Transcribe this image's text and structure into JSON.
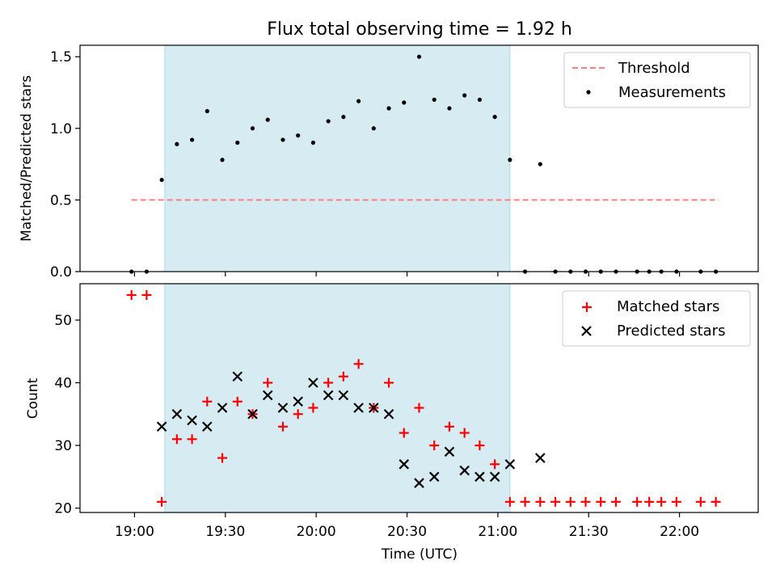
{
  "title": "Flux total observing time = 1.92 h",
  "xlabel": "Time (UTC)",
  "x_ticks": [
    "19:00",
    "19:30",
    "20:00",
    "20:30",
    "21:00",
    "21:30",
    "22:00"
  ],
  "colors": {
    "shade": "#add8e6",
    "threshold": "#ff7f7f",
    "measurement": "#000000",
    "matched": "#ff0000",
    "predicted": "#000000"
  },
  "chart_data": [
    {
      "type": "scatter",
      "panel": "top",
      "ylabel": "Matched/Predicted stars",
      "ylim": [
        0,
        1.58
      ],
      "y_ticks": [
        "0.0",
        "0.5",
        "1.0",
        "1.5"
      ],
      "legend_position": "top-right",
      "shaded_interval": [
        "19:10",
        "21:04"
      ],
      "threshold": {
        "name": "Threshold",
        "value": 0.5,
        "x_range": [
          "18:59",
          "22:13"
        ]
      },
      "series": [
        {
          "name": "Measurements",
          "x": [
            "18:59",
            "19:04",
            "19:09",
            "19:14",
            "19:19",
            "19:24",
            "19:29",
            "19:34",
            "19:39",
            "19:44",
            "19:49",
            "19:54",
            "19:59",
            "20:04",
            "20:09",
            "20:14",
            "20:19",
            "20:24",
            "20:29",
            "20:34",
            "20:39",
            "20:44",
            "20:49",
            "20:54",
            "20:59",
            "21:04",
            "21:09",
            "21:14",
            "21:19",
            "21:24",
            "21:29",
            "21:34",
            "21:39",
            "21:46",
            "21:50",
            "21:54",
            "21:59",
            "22:07",
            "22:12"
          ],
          "y": [
            0,
            0,
            0.64,
            0.89,
            0.92,
            1.12,
            0.78,
            0.9,
            1.0,
            1.06,
            0.92,
            0.95,
            0.9,
            1.05,
            1.08,
            1.19,
            1.0,
            1.14,
            1.18,
            1.5,
            1.2,
            1.14,
            1.23,
            1.2,
            1.08,
            0.78,
            0,
            0.75,
            0,
            0,
            0,
            0,
            0,
            0,
            0,
            0,
            0,
            0,
            0
          ]
        }
      ]
    },
    {
      "type": "scatter",
      "panel": "bottom",
      "ylabel": "Count",
      "ylim": [
        19.3,
        55.8
      ],
      "y_ticks": [
        "20",
        "30",
        "40",
        "50"
      ],
      "legend_position": "top-right",
      "shaded_interval": [
        "19:10",
        "21:04"
      ],
      "series": [
        {
          "name": "Matched stars",
          "marker": "plus",
          "x": [
            "18:59",
            "19:04",
            "19:09",
            "19:14",
            "19:19",
            "19:24",
            "19:29",
            "19:34",
            "19:39",
            "19:44",
            "19:49",
            "19:54",
            "19:59",
            "20:04",
            "20:09",
            "20:14",
            "20:19",
            "20:24",
            "20:29",
            "20:34",
            "20:39",
            "20:44",
            "20:49",
            "20:54",
            "20:59",
            "21:04",
            "21:09",
            "21:14",
            "21:19",
            "21:24",
            "21:29",
            "21:34",
            "21:39",
            "21:46",
            "21:50",
            "21:54",
            "21:59",
            "22:07",
            "22:12"
          ],
          "y": [
            54,
            54,
            21,
            31,
            31,
            37,
            28,
            37,
            35,
            40,
            33,
            35,
            36,
            40,
            41,
            43,
            36,
            40,
            32,
            36,
            30,
            33,
            32,
            30,
            27,
            21,
            21,
            21,
            21,
            21,
            21,
            21,
            21,
            21,
            21,
            21,
            21,
            21,
            21
          ]
        },
        {
          "name": "Predicted stars",
          "marker": "x",
          "x": [
            "19:09",
            "19:14",
            "19:19",
            "19:24",
            "19:29",
            "19:34",
            "19:39",
            "19:44",
            "19:49",
            "19:54",
            "19:59",
            "20:04",
            "20:09",
            "20:14",
            "20:19",
            "20:24",
            "20:29",
            "20:34",
            "20:39",
            "20:44",
            "20:49",
            "20:54",
            "20:59",
            "21:04",
            "21:14"
          ],
          "y": [
            33,
            35,
            34,
            33,
            36,
            41,
            35,
            38,
            36,
            37,
            40,
            38,
            38,
            36,
            36,
            35,
            27,
            24,
            25,
            29,
            26,
            25,
            25,
            27,
            28
          ]
        }
      ]
    }
  ]
}
